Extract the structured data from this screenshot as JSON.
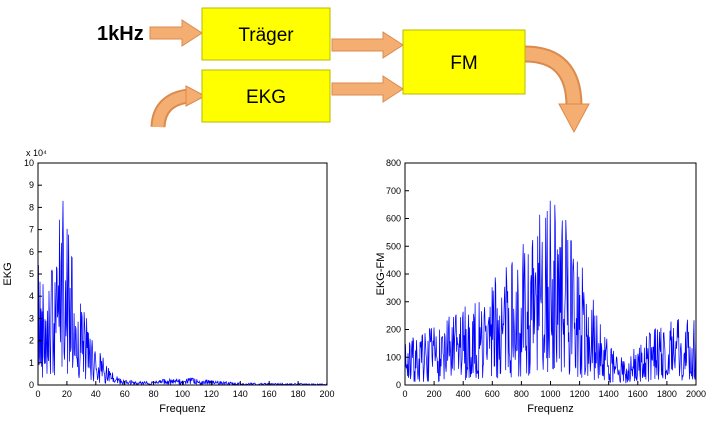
{
  "page": {
    "background": "#FFFFFF"
  },
  "diagram": {
    "input_label": "1kHz",
    "blocks": [
      {
        "label": "Träger"
      },
      {
        "label": "EKG"
      },
      {
        "label": "FM"
      }
    ],
    "colors": {
      "block_fill": "#FFFF00",
      "block_border": "#B8B800",
      "arrow_fill": "#F4AE72",
      "arrow_edge": "#DB8A4C",
      "text": "#000000"
    }
  },
  "chart_data": [
    {
      "id": "ekg_spectrum",
      "type": "line",
      "title": "",
      "xlabel": "Frequenz",
      "ylabel": "EKG",
      "y_scale_label": "x 10⁴",
      "xlim": [
        0,
        200
      ],
      "ylim": [
        0,
        10
      ],
      "xticks": [
        0,
        20,
        40,
        60,
        80,
        100,
        120,
        140,
        160,
        180,
        200
      ],
      "yticks": [
        0,
        1,
        2,
        3,
        4,
        5,
        6,
        7,
        8,
        9,
        10
      ],
      "line_color": "#0000FF",
      "axis_color": "#000000",
      "grid": false,
      "note": "Noisy magnitude spectrum; envelope lists [frequency, peak amplitude in 1e4 units]; spiky band 5-45 Hz, max ~8.8e4 near 17 Hz, near-zero floor above 60 Hz",
      "envelope": [
        [
          0,
          7.0
        ],
        [
          2,
          5.0
        ],
        [
          4,
          6.0
        ],
        [
          6,
          7.5
        ],
        [
          8,
          6.0
        ],
        [
          10,
          5.5
        ],
        [
          12,
          5.0
        ],
        [
          14,
          6.5
        ],
        [
          16,
          8.8
        ],
        [
          18,
          8.5
        ],
        [
          20,
          8.6
        ],
        [
          22,
          7.0
        ],
        [
          24,
          5.5
        ],
        [
          26,
          5.0
        ],
        [
          28,
          4.5
        ],
        [
          30,
          4.0
        ],
        [
          33,
          3.2
        ],
        [
          36,
          2.6
        ],
        [
          40,
          2.0
        ],
        [
          44,
          1.4
        ],
        [
          48,
          0.9
        ],
        [
          52,
          0.55
        ],
        [
          56,
          0.35
        ],
        [
          60,
          0.25
        ],
        [
          70,
          0.15
        ],
        [
          80,
          0.2
        ],
        [
          90,
          0.28
        ],
        [
          100,
          0.3
        ],
        [
          105,
          0.32
        ],
        [
          110,
          0.3
        ],
        [
          120,
          0.22
        ],
        [
          130,
          0.15
        ],
        [
          140,
          0.1
        ],
        [
          150,
          0.09
        ],
        [
          160,
          0.08
        ],
        [
          180,
          0.07
        ],
        [
          200,
          0.06
        ]
      ],
      "seed": 42
    },
    {
      "id": "ekg_fm_spectrum",
      "type": "line",
      "title": "",
      "xlabel": "Frequenz",
      "ylabel": "EKG-FM",
      "y_scale_label": "",
      "xlim": [
        0,
        2000
      ],
      "ylim": [
        0,
        800
      ],
      "xticks": [
        0,
        200,
        400,
        600,
        800,
        1000,
        1200,
        1400,
        1600,
        1800,
        2000
      ],
      "yticks": [
        0,
        100,
        200,
        300,
        400,
        500,
        600,
        700,
        800
      ],
      "line_color": "#0000FF",
      "axis_color": "#000000",
      "grid": false,
      "note": "Broadband noisy FM spectrum; envelope lists [frequency, peak amplitude]; mass rises toward carrier, max ~715 near 1000 Hz, dip near 1450-1500 Hz, slight rise to ~265 at 2000 Hz",
      "envelope": [
        [
          0,
          150
        ],
        [
          50,
          180
        ],
        [
          100,
          170
        ],
        [
          150,
          200
        ],
        [
          200,
          210
        ],
        [
          250,
          230
        ],
        [
          300,
          250
        ],
        [
          350,
          260
        ],
        [
          400,
          300
        ],
        [
          450,
          280
        ],
        [
          500,
          320
        ],
        [
          550,
          340
        ],
        [
          600,
          380
        ],
        [
          650,
          400
        ],
        [
          700,
          430
        ],
        [
          750,
          470
        ],
        [
          800,
          500
        ],
        [
          850,
          540
        ],
        [
          900,
          580
        ],
        [
          950,
          660
        ],
        [
          1000,
          715
        ],
        [
          1030,
          690
        ],
        [
          1060,
          640
        ],
        [
          1100,
          600
        ],
        [
          1150,
          560
        ],
        [
          1200,
          460
        ],
        [
          1250,
          380
        ],
        [
          1300,
          300
        ],
        [
          1350,
          220
        ],
        [
          1400,
          150
        ],
        [
          1450,
          110
        ],
        [
          1500,
          100
        ],
        [
          1550,
          120
        ],
        [
          1600,
          150
        ],
        [
          1650,
          180
        ],
        [
          1700,
          200
        ],
        [
          1750,
          220
        ],
        [
          1800,
          230
        ],
        [
          1850,
          240
        ],
        [
          1900,
          255
        ],
        [
          1950,
          260
        ],
        [
          2000,
          265
        ]
      ],
      "seed": 7
    }
  ]
}
